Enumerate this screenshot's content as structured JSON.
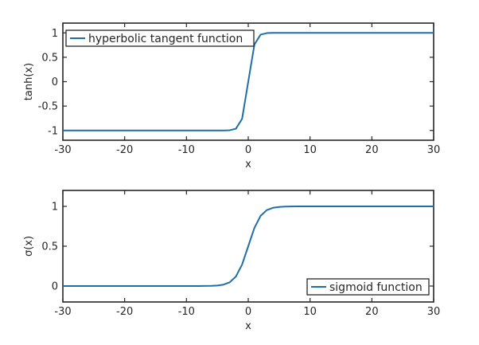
{
  "colors": {
    "line": "#1f6ea8",
    "axis": "#262626",
    "background": "#ffffff"
  },
  "chart_data": [
    {
      "type": "line",
      "xlabel": "x",
      "ylabel": "tanh(x)",
      "xlim": [
        -30,
        30
      ],
      "ylim": [
        -1.2,
        1.2
      ],
      "xticks": [
        -30,
        -20,
        -10,
        0,
        10,
        20,
        30
      ],
      "yticks": [
        -1,
        -0.5,
        0,
        0.5,
        1
      ],
      "xtick_labels": [
        "-30",
        "-20",
        "-10",
        "0",
        "10",
        "20",
        "30"
      ],
      "ytick_labels": [
        "-1",
        "-0.5",
        "0",
        "0.5",
        "1"
      ],
      "legend_position": "top-left",
      "grid": false,
      "series": [
        {
          "name": "hyperbolic tangent function",
          "x": [
            -30,
            -28,
            -26,
            -24,
            -22,
            -20,
            -18,
            -16,
            -14,
            -12,
            -10,
            -8,
            -6,
            -4,
            -3,
            -2,
            -1,
            0,
            1,
            2,
            3,
            4,
            6,
            8,
            10,
            12,
            14,
            16,
            18,
            20,
            22,
            24,
            26,
            28,
            30
          ],
          "y": [
            -1,
            -1,
            -1,
            -1,
            -1,
            -1,
            -1,
            -1,
            -1,
            -1,
            -1,
            -1,
            -1,
            -0.999,
            -0.995,
            -0.964,
            -0.762,
            0,
            0.762,
            0.964,
            0.995,
            0.999,
            1,
            1,
            1,
            1,
            1,
            1,
            1,
            1,
            1,
            1,
            1,
            1,
            1
          ]
        }
      ]
    },
    {
      "type": "line",
      "xlabel": "x",
      "ylabel": "σ(x)",
      "xlim": [
        -30,
        30
      ],
      "ylim": [
        -0.2,
        1.2
      ],
      "xticks": [
        -30,
        -20,
        -10,
        0,
        10,
        20,
        30
      ],
      "yticks": [
        0,
        0.5,
        1
      ],
      "xtick_labels": [
        "-30",
        "-20",
        "-10",
        "0",
        "10",
        "20",
        "30"
      ],
      "ytick_labels": [
        "0",
        "0.5",
        "1"
      ],
      "legend_position": "bottom-right",
      "grid": false,
      "series": [
        {
          "name": "sigmoid function",
          "x": [
            -30,
            -28,
            -26,
            -24,
            -22,
            -20,
            -18,
            -16,
            -14,
            -12,
            -10,
            -8,
            -6,
            -5,
            -4,
            -3,
            -2,
            -1,
            0,
            1,
            2,
            3,
            4,
            5,
            6,
            8,
            10,
            12,
            14,
            16,
            18,
            20,
            22,
            24,
            26,
            28,
            30
          ],
          "y": [
            0,
            0,
            0,
            0,
            0,
            0,
            0,
            0,
            0,
            0,
            0,
            0.0003,
            0.0025,
            0.0067,
            0.018,
            0.047,
            0.119,
            0.269,
            0.5,
            0.731,
            0.881,
            0.953,
            0.982,
            0.993,
            0.9975,
            0.9997,
            1,
            1,
            1,
            1,
            1,
            1,
            1,
            1,
            1,
            1,
            1
          ]
        }
      ]
    }
  ]
}
